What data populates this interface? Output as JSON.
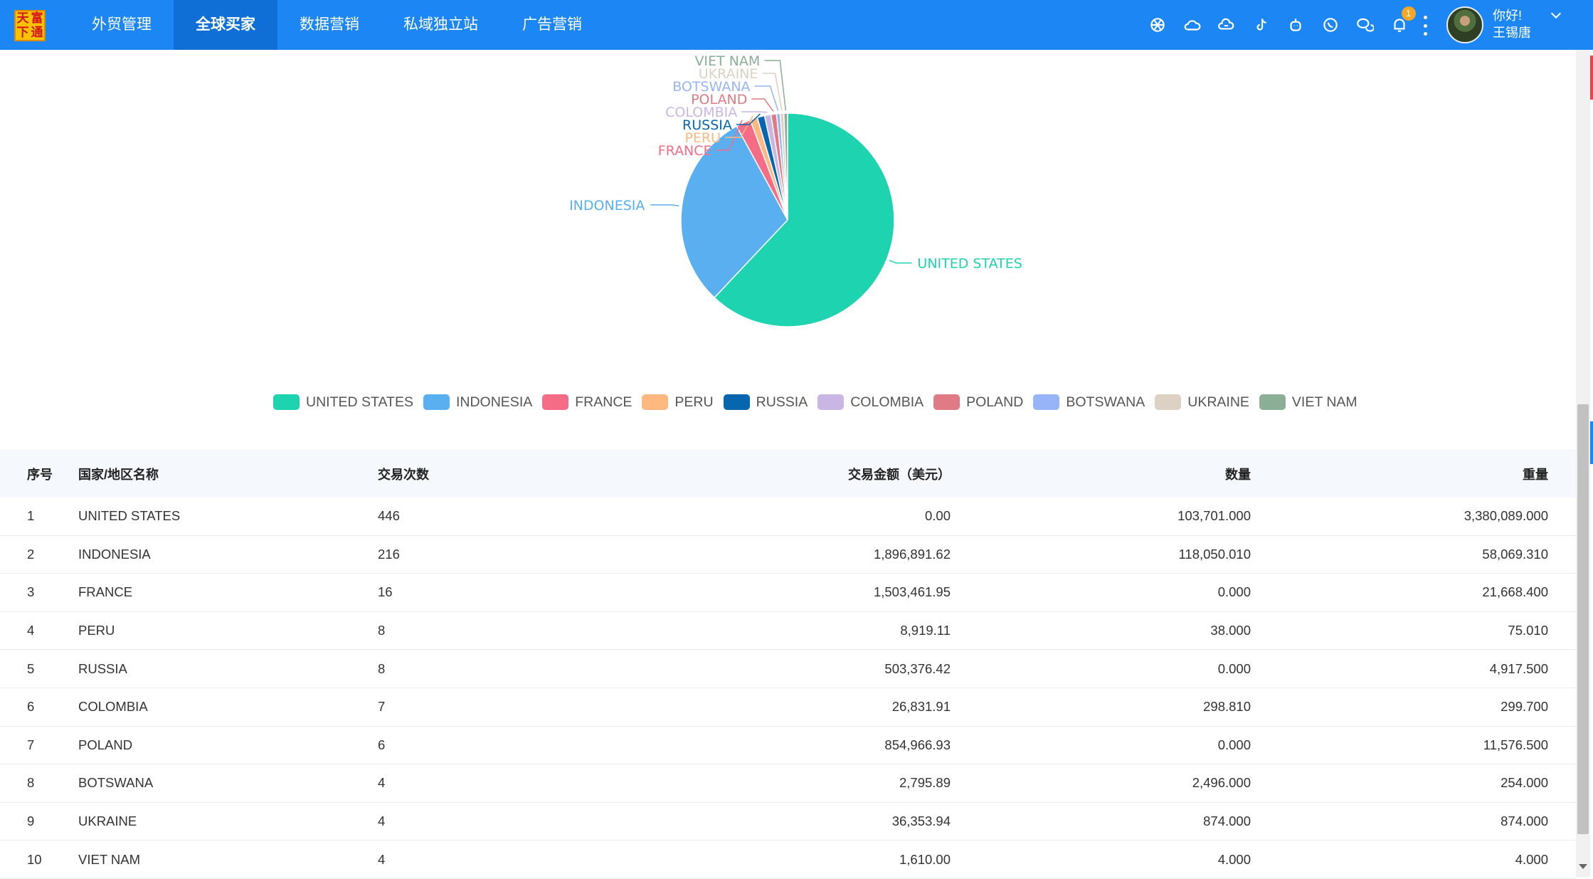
{
  "logo": {
    "chars": [
      "天",
      "富",
      "下",
      "通"
    ]
  },
  "nav": {
    "items": [
      {
        "label": "外贸管理",
        "active": false
      },
      {
        "label": "全球买家",
        "active": true
      },
      {
        "label": "数据营销",
        "active": false
      },
      {
        "label": "私域独立站",
        "active": false
      },
      {
        "label": "广告营销",
        "active": false
      }
    ]
  },
  "toolbar": {
    "icons": [
      "openai-icon",
      "cloud-icon",
      "message-cloud-icon",
      "tiktok-icon",
      "bot-icon",
      "whatsapp-icon",
      "wechat-icon",
      "bell-icon"
    ],
    "notification_count": "1"
  },
  "user": {
    "greeting": "你好!",
    "name": "王锡唐"
  },
  "colors": {
    "nav_bg": "#1b86f4",
    "nav_active": "#0f6fd6",
    "series": [
      "#1dd3b0",
      "#5aaff0",
      "#f56c86",
      "#ffb880",
      "#0766ad",
      "#c9b6e4",
      "#e07a84",
      "#98b4f8",
      "#dcd1c3",
      "#8aae96"
    ]
  },
  "chart_data": {
    "type": "pie",
    "categories": [
      "UNITED STATES",
      "INDONESIA",
      "FRANCE",
      "PERU",
      "RUSSIA",
      "COLOMBIA",
      "POLAND",
      "BOTSWANA",
      "UKRAINE",
      "VIET NAM"
    ],
    "values": [
      446,
      216,
      16,
      8,
      8,
      7,
      6,
      4,
      4,
      4
    ],
    "legend_position": "bottom-center"
  },
  "table": {
    "headers": [
      "序号",
      "国家/地区名称",
      "交易次数",
      "交易金额（美元）",
      "数量",
      "重量"
    ],
    "rows": [
      [
        "1",
        "UNITED STATES",
        "446",
        "0.00",
        "103,701.000",
        "3,380,089.000"
      ],
      [
        "2",
        "INDONESIA",
        "216",
        "1,896,891.62",
        "118,050.010",
        "58,069.310"
      ],
      [
        "3",
        "FRANCE",
        "16",
        "1,503,461.95",
        "0.000",
        "21,668.400"
      ],
      [
        "4",
        "PERU",
        "8",
        "8,919.11",
        "38.000",
        "75.010"
      ],
      [
        "5",
        "RUSSIA",
        "8",
        "503,376.42",
        "0.000",
        "4,917.500"
      ],
      [
        "6",
        "COLOMBIA",
        "7",
        "26,831.91",
        "298.810",
        "299.700"
      ],
      [
        "7",
        "POLAND",
        "6",
        "854,966.93",
        "0.000",
        "11,576.500"
      ],
      [
        "8",
        "BOTSWANA",
        "4",
        "2,795.89",
        "2,496.000",
        "254.000"
      ],
      [
        "9",
        "UKRAINE",
        "4",
        "36,353.94",
        "874.000",
        "874.000"
      ],
      [
        "10",
        "VIET NAM",
        "4",
        "1,610.00",
        "4.000",
        "4.000"
      ]
    ]
  }
}
